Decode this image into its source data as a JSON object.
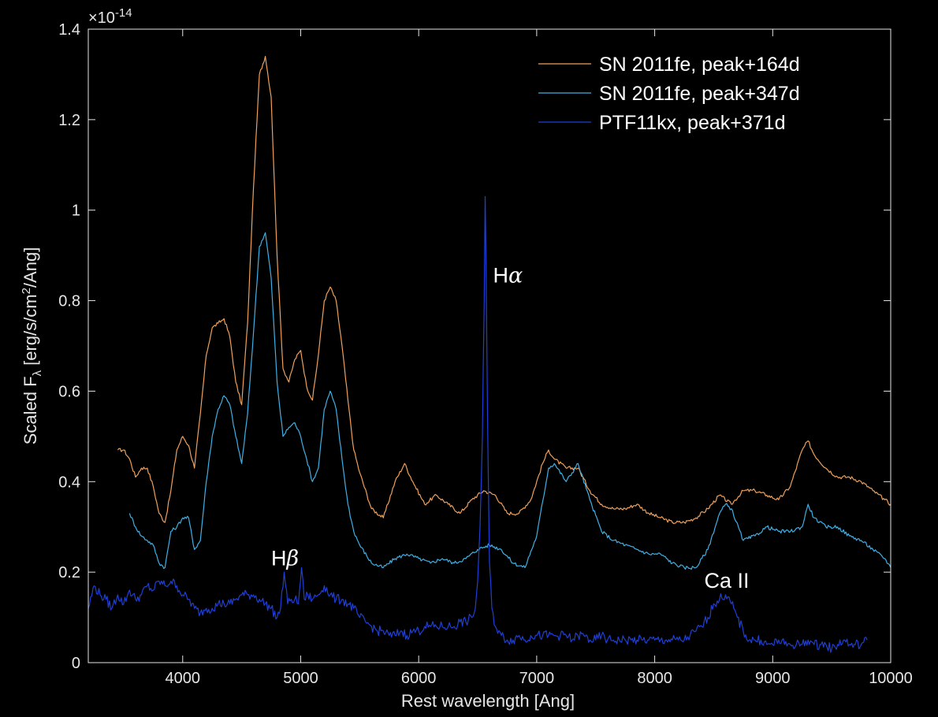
{
  "chart_data": {
    "type": "line",
    "xlabel": "Rest wavelength [Ang]",
    "ylabel_main": "Scaled F",
    "ylabel_sub": "λ",
    "ylabel_rest": " [erg/s/cm",
    "ylabel_sup": "2",
    "ylabel_end": "/Ang]",
    "y_exponent_prefix": "×10",
    "y_exponent": "-14",
    "xlim": [
      3200,
      10000
    ],
    "ylim": [
      0,
      1.4
    ],
    "x_ticks": [
      4000,
      5000,
      6000,
      7000,
      8000,
      9000,
      10000
    ],
    "x_tick_labels": [
      "4000",
      "5000",
      "6000",
      "7000",
      "8000",
      "9000",
      "10000"
    ],
    "y_ticks": [
      0,
      0.2,
      0.4,
      0.6,
      0.8,
      1.0,
      1.2,
      1.4
    ],
    "y_tick_labels": [
      "0",
      "0.2",
      "0.4",
      "0.6",
      "0.8",
      "1",
      "1.2",
      "1.4"
    ],
    "grid": false,
    "legend_position": "top-right",
    "series": [
      {
        "name": "SN 2011fe, peak+164d",
        "color": "#f0a05a",
        "x": [
          3450,
          3500,
          3550,
          3600,
          3650,
          3700,
          3750,
          3800,
          3850,
          3900,
          3950,
          4000,
          4050,
          4100,
          4150,
          4200,
          4250,
          4300,
          4350,
          4400,
          4450,
          4500,
          4550,
          4600,
          4650,
          4700,
          4750,
          4800,
          4850,
          4900,
          4950,
          5000,
          5050,
          5100,
          5150,
          5200,
          5250,
          5300,
          5350,
          5400,
          5450,
          5500,
          5600,
          5700,
          5800,
          5880,
          5950,
          6050,
          6150,
          6250,
          6350,
          6450,
          6550,
          6650,
          6750,
          6850,
          6950,
          7050,
          7100,
          7150,
          7250,
          7350,
          7450,
          7550,
          7650,
          7750,
          7850,
          7950,
          8050,
          8150,
          8250,
          8350,
          8450,
          8550,
          8650,
          8750,
          8850,
          8950,
          9050,
          9150,
          9250,
          9300,
          9350,
          9450,
          9550,
          9650,
          9750,
          9850,
          9950,
          10000
        ],
        "values": [
          0.47,
          0.47,
          0.45,
          0.41,
          0.43,
          0.43,
          0.39,
          0.33,
          0.31,
          0.38,
          0.47,
          0.5,
          0.48,
          0.43,
          0.55,
          0.68,
          0.74,
          0.75,
          0.76,
          0.72,
          0.62,
          0.57,
          0.75,
          1.05,
          1.3,
          1.34,
          1.25,
          0.9,
          0.65,
          0.62,
          0.67,
          0.69,
          0.61,
          0.58,
          0.68,
          0.8,
          0.83,
          0.8,
          0.7,
          0.58,
          0.47,
          0.42,
          0.34,
          0.32,
          0.4,
          0.44,
          0.4,
          0.35,
          0.37,
          0.35,
          0.33,
          0.36,
          0.38,
          0.37,
          0.33,
          0.33,
          0.36,
          0.44,
          0.47,
          0.45,
          0.43,
          0.43,
          0.38,
          0.35,
          0.34,
          0.34,
          0.35,
          0.33,
          0.32,
          0.31,
          0.31,
          0.32,
          0.34,
          0.37,
          0.35,
          0.38,
          0.38,
          0.37,
          0.36,
          0.39,
          0.47,
          0.49,
          0.46,
          0.43,
          0.41,
          0.41,
          0.4,
          0.38,
          0.36,
          0.35
        ]
      },
      {
        "name": "SN 2011fe, peak+347d",
        "color": "#3fb0e6",
        "x": [
          3550,
          3600,
          3650,
          3700,
          3750,
          3800,
          3850,
          3900,
          3950,
          4000,
          4050,
          4100,
          4150,
          4200,
          4250,
          4300,
          4350,
          4400,
          4450,
          4500,
          4550,
          4600,
          4650,
          4700,
          4750,
          4800,
          4850,
          4900,
          4950,
          5000,
          5050,
          5100,
          5150,
          5200,
          5250,
          5300,
          5350,
          5400,
          5450,
          5500,
          5600,
          5700,
          5800,
          5900,
          6000,
          6100,
          6200,
          6300,
          6400,
          6500,
          6600,
          6700,
          6800,
          6900,
          7000,
          7100,
          7150,
          7250,
          7350,
          7450,
          7550,
          7650,
          7750,
          7850,
          7950,
          8050,
          8150,
          8250,
          8350,
          8450,
          8550,
          8600,
          8650,
          8750,
          8850,
          8950,
          9050,
          9150,
          9250,
          9300,
          9350,
          9450,
          9550,
          9650,
          9750,
          9850,
          9950,
          10000
        ],
        "values": [
          0.33,
          0.3,
          0.28,
          0.27,
          0.26,
          0.22,
          0.21,
          0.29,
          0.3,
          0.32,
          0.32,
          0.25,
          0.27,
          0.4,
          0.5,
          0.56,
          0.59,
          0.57,
          0.5,
          0.44,
          0.55,
          0.73,
          0.92,
          0.95,
          0.85,
          0.62,
          0.5,
          0.52,
          0.53,
          0.5,
          0.45,
          0.4,
          0.43,
          0.56,
          0.6,
          0.56,
          0.45,
          0.35,
          0.29,
          0.26,
          0.22,
          0.21,
          0.23,
          0.24,
          0.23,
          0.22,
          0.23,
          0.22,
          0.23,
          0.25,
          0.26,
          0.25,
          0.22,
          0.21,
          0.28,
          0.43,
          0.44,
          0.4,
          0.44,
          0.36,
          0.29,
          0.27,
          0.26,
          0.25,
          0.24,
          0.24,
          0.22,
          0.21,
          0.21,
          0.25,
          0.33,
          0.35,
          0.34,
          0.27,
          0.28,
          0.3,
          0.29,
          0.29,
          0.3,
          0.35,
          0.32,
          0.3,
          0.3,
          0.28,
          0.27,
          0.25,
          0.23,
          0.21
        ]
      },
      {
        "name": "PTF11kx, peak+371d",
        "color": "#1f3fd6",
        "x": [
          3200,
          3250,
          3300,
          3350,
          3400,
          3450,
          3500,
          3550,
          3600,
          3650,
          3700,
          3750,
          3800,
          3850,
          3900,
          3950,
          4000,
          4050,
          4100,
          4150,
          4200,
          4250,
          4300,
          4350,
          4400,
          4450,
          4500,
          4550,
          4600,
          4650,
          4700,
          4750,
          4800,
          4830,
          4860,
          4890,
          4920,
          4950,
          4980,
          5007,
          5030,
          5060,
          5100,
          5150,
          5200,
          5250,
          5300,
          5350,
          5400,
          5450,
          5500,
          5550,
          5600,
          5650,
          5700,
          5750,
          5800,
          5850,
          5900,
          5950,
          6000,
          6050,
          6100,
          6150,
          6200,
          6250,
          6300,
          6350,
          6400,
          6450,
          6480,
          6500,
          6520,
          6540,
          6555,
          6563,
          6570,
          6585,
          6600,
          6620,
          6650,
          6700,
          6750,
          6800,
          6850,
          6900,
          6950,
          7000,
          7050,
          7100,
          7150,
          7200,
          7250,
          7300,
          7350,
          7400,
          7450,
          7500,
          7550,
          7600,
          7650,
          7700,
          7750,
          7800,
          7850,
          7900,
          7950,
          8000,
          8050,
          8100,
          8150,
          8200,
          8250,
          8300,
          8350,
          8400,
          8450,
          8500,
          8550,
          8600,
          8650,
          8700,
          8750,
          8800,
          8850,
          8900,
          8950,
          9000,
          9050,
          9100,
          9150,
          9200,
          9250,
          9300,
          9350,
          9400,
          9450,
          9500,
          9550,
          9600,
          9650,
          9700,
          9750,
          9800
        ],
        "values": [
          0.12,
          0.17,
          0.15,
          0.14,
          0.12,
          0.15,
          0.13,
          0.16,
          0.14,
          0.15,
          0.17,
          0.16,
          0.18,
          0.17,
          0.18,
          0.17,
          0.15,
          0.14,
          0.12,
          0.11,
          0.12,
          0.12,
          0.13,
          0.13,
          0.13,
          0.14,
          0.15,
          0.15,
          0.15,
          0.14,
          0.13,
          0.12,
          0.1,
          0.12,
          0.2,
          0.13,
          0.14,
          0.14,
          0.13,
          0.21,
          0.14,
          0.15,
          0.14,
          0.15,
          0.17,
          0.15,
          0.14,
          0.14,
          0.13,
          0.12,
          0.1,
          0.09,
          0.08,
          0.07,
          0.07,
          0.06,
          0.06,
          0.07,
          0.06,
          0.07,
          0.07,
          0.08,
          0.08,
          0.08,
          0.08,
          0.08,
          0.08,
          0.09,
          0.09,
          0.1,
          0.12,
          0.18,
          0.3,
          0.5,
          0.8,
          1.03,
          0.9,
          0.5,
          0.22,
          0.12,
          0.08,
          0.06,
          0.05,
          0.05,
          0.06,
          0.05,
          0.06,
          0.06,
          0.06,
          0.06,
          0.06,
          0.06,
          0.06,
          0.05,
          0.06,
          0.06,
          0.05,
          0.05,
          0.06,
          0.05,
          0.05,
          0.05,
          0.05,
          0.05,
          0.05,
          0.05,
          0.05,
          0.05,
          0.05,
          0.05,
          0.05,
          0.05,
          0.05,
          0.06,
          0.07,
          0.08,
          0.1,
          0.13,
          0.14,
          0.15,
          0.13,
          0.1,
          0.07,
          0.05,
          0.05,
          0.05,
          0.04,
          0.04,
          0.05,
          0.04,
          0.04,
          0.04,
          0.04,
          0.05,
          0.04,
          0.04,
          0.04,
          0.03,
          0.04,
          0.05,
          0.04,
          0.04,
          0.04,
          0.05
        ]
      }
    ],
    "annotations": [
      {
        "main": "H",
        "greek": "β",
        "x": 4750,
        "y": 0.215
      },
      {
        "main": "H",
        "greek": "α",
        "x": 6630,
        "y": 0.84
      },
      {
        "main": "Ca II",
        "greek": "",
        "x": 8420,
        "y": 0.165
      }
    ]
  }
}
